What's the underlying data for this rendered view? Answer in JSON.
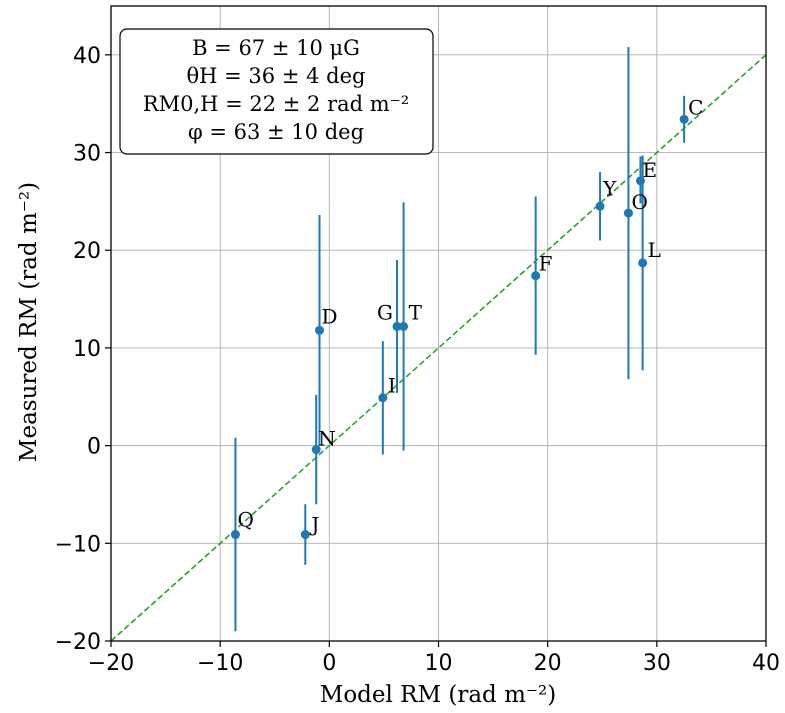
{
  "chart_data": {
    "type": "scatter",
    "xlabel": "Model RM (rad m⁻²)",
    "ylabel": "Measured RM (rad m⁻²)",
    "xlim": [
      -20,
      40
    ],
    "ylim": [
      -20,
      45
    ],
    "xticks": [
      -20,
      -10,
      0,
      10,
      20,
      30,
      40
    ],
    "yticks": [
      -20,
      -10,
      0,
      10,
      20,
      30,
      40
    ],
    "xtick_labels": [
      "−20",
      "−10",
      "0",
      "10",
      "20",
      "30",
      "40"
    ],
    "ytick_labels": [
      "−20",
      "−10",
      "0",
      "10",
      "20",
      "30",
      "40"
    ],
    "grid": true,
    "annotation_lines": [
      "B = 67 ± 10 μG",
      "θH = 36 ± 4 deg",
      "RM0,H = 22 ± 2 rad m⁻²",
      "φ = 63 ± 10 deg"
    ],
    "annotation_location": "top-left",
    "reference_line": {
      "style": "dashed",
      "color": "#2ca02c",
      "x": [
        -20,
        40
      ],
      "y": [
        -20,
        40
      ]
    },
    "point_color": "#1f77b4",
    "points": [
      {
        "label": "C",
        "x": 32.5,
        "y": 33.4,
        "err_low": 31.0,
        "err_high": 35.8
      },
      {
        "label": "E",
        "x": 28.5,
        "y": 27.1,
        "err_low": 24.8,
        "err_high": 29.6
      },
      {
        "label": "Y",
        "x": 24.8,
        "y": 24.5,
        "err_low": 21.0,
        "err_high": 28.0
      },
      {
        "label": "O",
        "x": 27.4,
        "y": 23.8,
        "err_low": 6.8,
        "err_high": 40.8
      },
      {
        "label": "L",
        "x": 28.7,
        "y": 18.7,
        "err_low": 7.7,
        "err_high": 29.7
      },
      {
        "label": "F",
        "x": 18.9,
        "y": 17.4,
        "err_low": 9.3,
        "err_high": 25.5
      },
      {
        "label": "D",
        "x": -0.9,
        "y": 11.8,
        "err_low": 0.0,
        "err_high": 23.6
      },
      {
        "label": "G",
        "x": 6.2,
        "y": 12.2,
        "err_low": 5.4,
        "err_high": 19.0
      },
      {
        "label": "T",
        "x": 6.8,
        "y": 12.2,
        "err_low": -0.5,
        "err_high": 24.9
      },
      {
        "label": "I",
        "x": 4.9,
        "y": 4.9,
        "err_low": -0.9,
        "err_high": 10.7
      },
      {
        "label": "N",
        "x": -1.2,
        "y": -0.4,
        "err_low": -6.0,
        "err_high": 5.2
      },
      {
        "label": "Q",
        "x": -8.6,
        "y": -9.1,
        "err_low": -19.0,
        "err_high": 0.8
      },
      {
        "label": "J",
        "x": -2.2,
        "y": -9.1,
        "err_low": -12.2,
        "err_high": -6.0
      }
    ]
  }
}
